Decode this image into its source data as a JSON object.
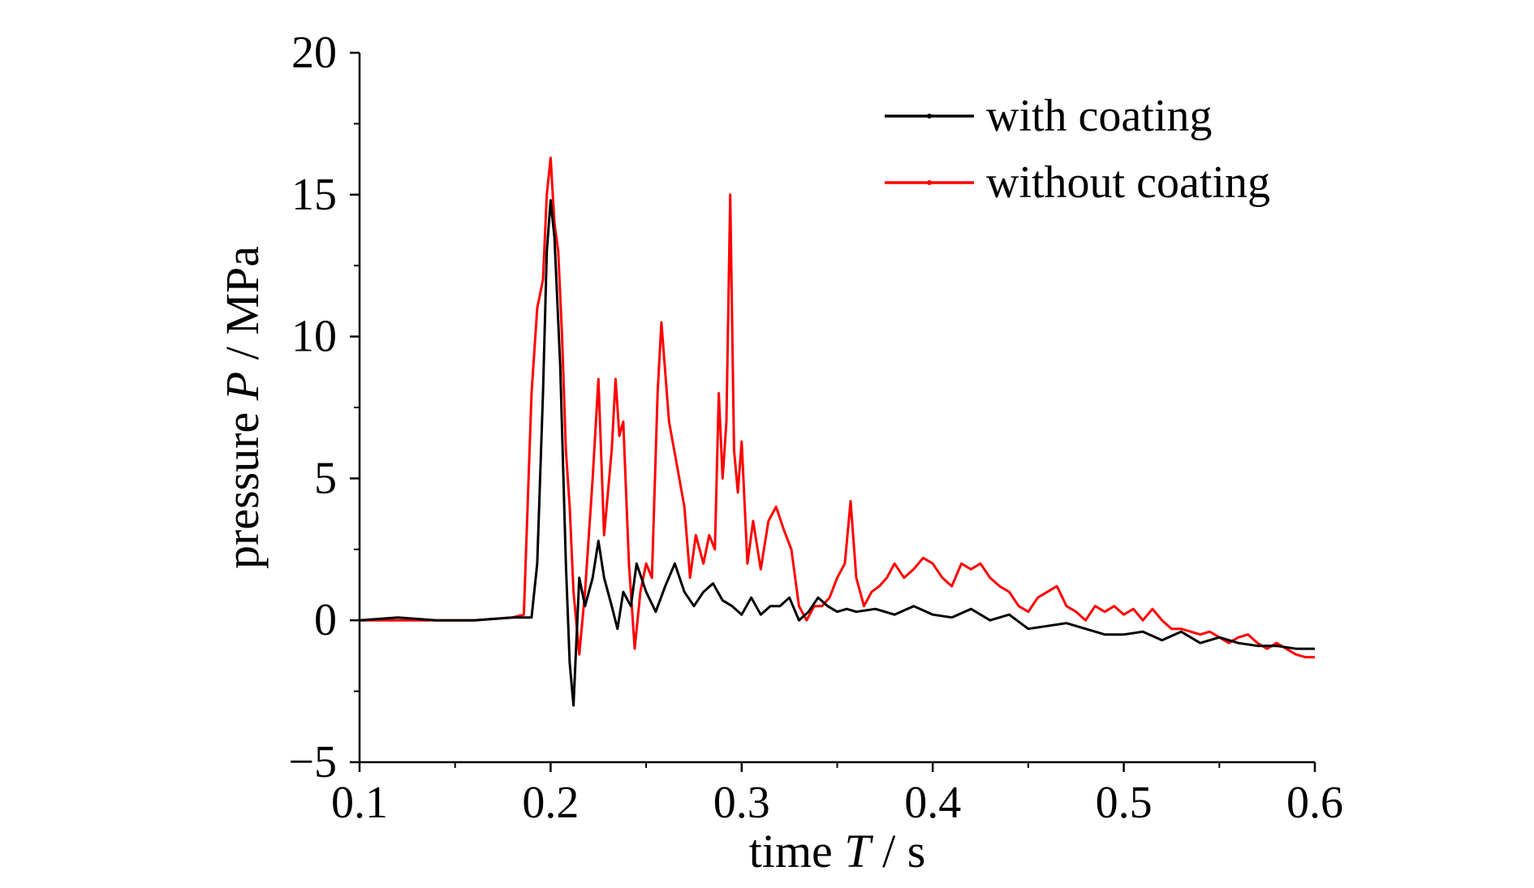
{
  "chart_data": {
    "type": "line",
    "title": "",
    "xlabel": {
      "prefix": "time ",
      "symbol": "T",
      "suffix": " / s"
    },
    "ylabel": {
      "prefix": "pressure ",
      "symbol": "P",
      "suffix": " / MPa"
    },
    "xlim": [
      0.1,
      0.6
    ],
    "ylim": [
      -5,
      20
    ],
    "xticks": [
      "0.1",
      "0.2",
      "0.3",
      "0.4",
      "0.5",
      "0.6"
    ],
    "xtick_values": [
      0.1,
      0.2,
      0.3,
      0.4,
      0.5,
      0.6
    ],
    "yticks": [
      "−5",
      "0",
      "5",
      "10",
      "15",
      "20"
    ],
    "ytick_values": [
      -5,
      0,
      5,
      10,
      15,
      20
    ],
    "grid": false,
    "legend_position": "top-right",
    "series": [
      {
        "name": "with coating",
        "color": "#000000",
        "x": [
          0.1,
          0.12,
          0.14,
          0.16,
          0.18,
          0.19,
          0.193,
          0.196,
          0.198,
          0.2,
          0.202,
          0.205,
          0.208,
          0.21,
          0.212,
          0.215,
          0.218,
          0.222,
          0.225,
          0.228,
          0.232,
          0.235,
          0.238,
          0.242,
          0.245,
          0.25,
          0.255,
          0.26,
          0.265,
          0.27,
          0.275,
          0.28,
          0.285,
          0.29,
          0.295,
          0.3,
          0.305,
          0.31,
          0.315,
          0.32,
          0.325,
          0.33,
          0.335,
          0.34,
          0.345,
          0.35,
          0.355,
          0.36,
          0.37,
          0.38,
          0.39,
          0.4,
          0.41,
          0.42,
          0.43,
          0.44,
          0.45,
          0.46,
          0.47,
          0.48,
          0.49,
          0.5,
          0.51,
          0.52,
          0.53,
          0.54,
          0.55,
          0.56,
          0.57,
          0.58,
          0.59,
          0.6
        ],
        "y": [
          0.0,
          0.1,
          0.0,
          0.0,
          0.1,
          0.1,
          2.0,
          8.0,
          13.0,
          14.8,
          13.5,
          9.0,
          2.0,
          -1.5,
          -3.0,
          1.5,
          0.5,
          1.5,
          2.8,
          1.5,
          0.5,
          -0.3,
          1.0,
          0.5,
          2.0,
          1.0,
          0.3,
          1.2,
          2.0,
          1.0,
          0.5,
          1.0,
          1.3,
          0.7,
          0.5,
          0.2,
          0.8,
          0.2,
          0.5,
          0.5,
          0.8,
          0.0,
          0.3,
          0.8,
          0.5,
          0.3,
          0.4,
          0.3,
          0.4,
          0.2,
          0.5,
          0.2,
          0.1,
          0.4,
          0.0,
          0.2,
          -0.3,
          -0.2,
          -0.1,
          -0.3,
          -0.5,
          -0.5,
          -0.4,
          -0.7,
          -0.4,
          -0.8,
          -0.6,
          -0.8,
          -0.9,
          -0.9,
          -1.0,
          -1.0
        ]
      },
      {
        "name": "without coating",
        "color": "#ff0000",
        "x": [
          0.1,
          0.12,
          0.14,
          0.16,
          0.18,
          0.186,
          0.19,
          0.193,
          0.196,
          0.198,
          0.2,
          0.202,
          0.204,
          0.206,
          0.208,
          0.21,
          0.212,
          0.215,
          0.218,
          0.222,
          0.225,
          0.228,
          0.232,
          0.234,
          0.236,
          0.238,
          0.241,
          0.244,
          0.247,
          0.25,
          0.253,
          0.256,
          0.258,
          0.262,
          0.266,
          0.27,
          0.273,
          0.276,
          0.28,
          0.283,
          0.286,
          0.288,
          0.29,
          0.292,
          0.294,
          0.296,
          0.298,
          0.3,
          0.303,
          0.306,
          0.31,
          0.314,
          0.318,
          0.322,
          0.326,
          0.33,
          0.334,
          0.338,
          0.342,
          0.346,
          0.35,
          0.354,
          0.357,
          0.36,
          0.364,
          0.368,
          0.372,
          0.376,
          0.38,
          0.385,
          0.39,
          0.395,
          0.4,
          0.405,
          0.41,
          0.415,
          0.42,
          0.425,
          0.43,
          0.435,
          0.44,
          0.445,
          0.45,
          0.455,
          0.46,
          0.465,
          0.47,
          0.475,
          0.48,
          0.485,
          0.49,
          0.495,
          0.5,
          0.505,
          0.51,
          0.515,
          0.52,
          0.525,
          0.53,
          0.535,
          0.54,
          0.545,
          0.55,
          0.555,
          0.56,
          0.565,
          0.57,
          0.575,
          0.58,
          0.585,
          0.59,
          0.595,
          0.6
        ],
        "y": [
          0.0,
          0.0,
          0.0,
          0.0,
          0.1,
          0.2,
          8.0,
          11.0,
          12.0,
          15.0,
          16.3,
          14.0,
          13.0,
          10.0,
          6.0,
          4.0,
          1.0,
          -1.2,
          1.0,
          5.0,
          8.5,
          3.0,
          6.0,
          8.5,
          6.5,
          7.0,
          2.0,
          -1.0,
          1.0,
          2.0,
          1.5,
          8.0,
          10.5,
          7.0,
          5.5,
          4.0,
          1.5,
          3.0,
          2.0,
          3.0,
          2.5,
          8.0,
          5.0,
          7.0,
          15.0,
          6.0,
          4.5,
          6.3,
          2.0,
          3.5,
          1.8,
          3.5,
          4.0,
          3.2,
          2.5,
          0.5,
          0.0,
          0.5,
          0.5,
          0.8,
          1.5,
          2.0,
          4.2,
          1.5,
          0.5,
          1.0,
          1.2,
          1.5,
          2.0,
          1.5,
          1.8,
          2.2,
          2.0,
          1.5,
          1.2,
          2.0,
          1.8,
          2.0,
          1.5,
          1.2,
          1.0,
          0.5,
          0.3,
          0.8,
          1.0,
          1.2,
          0.5,
          0.3,
          0.0,
          0.5,
          0.3,
          0.5,
          0.2,
          0.4,
          0.0,
          0.4,
          0.0,
          -0.3,
          -0.3,
          -0.4,
          -0.5,
          -0.4,
          -0.6,
          -0.8,
          -0.6,
          -0.5,
          -0.8,
          -1.0,
          -0.8,
          -1.0,
          -1.2,
          -1.3,
          -1.3
        ]
      }
    ]
  }
}
